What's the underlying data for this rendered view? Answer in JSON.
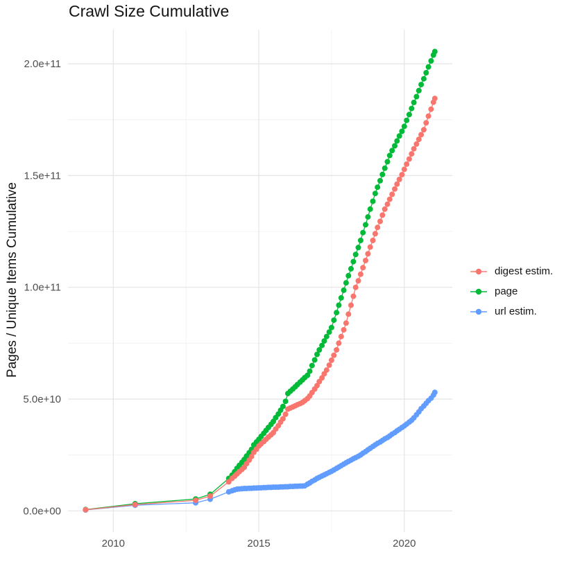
{
  "title": "Crawl Size Cumulative",
  "axes": {
    "y_title": "Pages / Unique Items Cumulative",
    "y_ticks": [
      "0.0e+00",
      "5.0e+10",
      "1.0e+11",
      "1.5e+11",
      "2.0e+11"
    ],
    "x_ticks": [
      "2010",
      "2015",
      "2020"
    ]
  },
  "legend": [
    {
      "label": "digest estim.",
      "color": "#F8766D"
    },
    {
      "label": "page",
      "color": "#00BA38"
    },
    {
      "label": "url estim.",
      "color": "#619CFF"
    }
  ],
  "chart_data": {
    "type": "scatter",
    "title": "Crawl Size Cumulative",
    "xlabel": "",
    "ylabel": "Pages / Unique Items Cumulative",
    "xlim": [
      2008.45,
      2021.66
    ],
    "ylim_e10": [
      -1.0,
      21.5
    ],
    "grid": true,
    "legend_position": "right",
    "value_unit": "1e10 pages / unique items (cumulative)",
    "x_major_ticks": [
      2010,
      2015,
      2020
    ],
    "x_minor_gridlines": [
      2012.5,
      2017.5
    ],
    "y_major_ticks_e10": [
      0,
      5,
      10,
      15,
      20
    ],
    "y_minor_gridlines_e10": [
      2.5,
      7.5,
      12.5,
      17.5
    ],
    "draw_order": [
      "page",
      "url estim.",
      "digest estim."
    ],
    "series": [
      {
        "name": "digest estim.",
        "color": "#F8766D",
        "points": [
          [
            2009.05,
            0.05
          ],
          [
            2010.75,
            0.28
          ],
          [
            2012.83,
            0.47
          ],
          [
            2013.33,
            0.66
          ],
          [
            2013.97,
            1.3
          ],
          [
            2014.08,
            1.45
          ],
          [
            2014.17,
            1.55
          ],
          [
            2014.25,
            1.65
          ],
          [
            2014.33,
            1.75
          ],
          [
            2014.42,
            1.85
          ],
          [
            2014.5,
            1.95
          ],
          [
            2014.58,
            2.11
          ],
          [
            2014.67,
            2.27
          ],
          [
            2014.75,
            2.43
          ],
          [
            2014.83,
            2.62
          ],
          [
            2014.92,
            2.76
          ],
          [
            2015,
            2.9
          ],
          [
            2015.08,
            3
          ],
          [
            2015.17,
            3.1
          ],
          [
            2015.25,
            3.2
          ],
          [
            2015.33,
            3.3
          ],
          [
            2015.42,
            3.4
          ],
          [
            2015.5,
            3.5
          ],
          [
            2015.58,
            3.66
          ],
          [
            2015.67,
            3.81
          ],
          [
            2015.75,
            3.97
          ],
          [
            2015.83,
            4.12
          ],
          [
            2015.92,
            4.32
          ],
          [
            2016,
            4.55
          ],
          [
            2016.08,
            4.6
          ],
          [
            2016.17,
            4.65
          ],
          [
            2016.25,
            4.7
          ],
          [
            2016.33,
            4.75
          ],
          [
            2016.42,
            4.8
          ],
          [
            2016.5,
            4.85
          ],
          [
            2016.58,
            4.93
          ],
          [
            2016.67,
            5.02
          ],
          [
            2016.75,
            5.14
          ],
          [
            2016.83,
            5.29
          ],
          [
            2016.92,
            5.45
          ],
          [
            2017,
            5.6
          ],
          [
            2017.08,
            5.78
          ],
          [
            2017.17,
            5.95
          ],
          [
            2017.25,
            6.13
          ],
          [
            2017.33,
            6.3
          ],
          [
            2017.42,
            6.52
          ],
          [
            2017.5,
            6.74
          ],
          [
            2017.58,
            6.96
          ],
          [
            2017.67,
            7.2
          ],
          [
            2017.75,
            7.5
          ],
          [
            2017.83,
            7.8
          ],
          [
            2017.92,
            8.1
          ],
          [
            2018,
            8.4
          ],
          [
            2018.08,
            8.8
          ],
          [
            2018.17,
            9.2
          ],
          [
            2018.25,
            9.6
          ],
          [
            2018.33,
            10
          ],
          [
            2018.42,
            10.29
          ],
          [
            2018.5,
            10.59
          ],
          [
            2018.58,
            10.88
          ],
          [
            2018.67,
            11.2
          ],
          [
            2018.75,
            11.5
          ],
          [
            2018.83,
            11.8
          ],
          [
            2018.92,
            12.1
          ],
          [
            2019,
            12.4
          ],
          [
            2019.08,
            12.68
          ],
          [
            2019.17,
            12.95
          ],
          [
            2019.25,
            13.23
          ],
          [
            2019.33,
            13.5
          ],
          [
            2019.42,
            13.72
          ],
          [
            2019.5,
            13.94
          ],
          [
            2019.58,
            14.16
          ],
          [
            2019.67,
            14.4
          ],
          [
            2019.75,
            14.62
          ],
          [
            2019.83,
            14.83
          ],
          [
            2019.92,
            15.04
          ],
          [
            2020,
            15.28
          ],
          [
            2020.08,
            15.51
          ],
          [
            2020.17,
            15.74
          ],
          [
            2020.25,
            15.97
          ],
          [
            2020.33,
            16.2
          ],
          [
            2020.42,
            16.41
          ],
          [
            2020.5,
            16.62
          ],
          [
            2020.58,
            16.83
          ],
          [
            2020.67,
            17.05
          ],
          [
            2020.75,
            17.36
          ],
          [
            2020.83,
            17.66
          ],
          [
            2020.92,
            17.97
          ],
          [
            2021,
            18.28
          ],
          [
            2021.05,
            18.45
          ]
        ]
      },
      {
        "name": "page",
        "color": "#00BA38",
        "points": [
          [
            2009.05,
            0.06
          ],
          [
            2010.75,
            0.32
          ],
          [
            2012.83,
            0.53
          ],
          [
            2013.33,
            0.74
          ],
          [
            2013.97,
            1.45
          ],
          [
            2014.08,
            1.6
          ],
          [
            2014.17,
            1.75
          ],
          [
            2014.25,
            1.9
          ],
          [
            2014.33,
            2.03
          ],
          [
            2014.42,
            2.17
          ],
          [
            2014.5,
            2.3
          ],
          [
            2014.58,
            2.45
          ],
          [
            2014.67,
            2.6
          ],
          [
            2014.75,
            2.75
          ],
          [
            2014.83,
            2.95
          ],
          [
            2014.92,
            3.08
          ],
          [
            2015,
            3.2
          ],
          [
            2015.08,
            3.33
          ],
          [
            2015.17,
            3.47
          ],
          [
            2015.25,
            3.6
          ],
          [
            2015.33,
            3.73
          ],
          [
            2015.42,
            3.87
          ],
          [
            2015.5,
            4
          ],
          [
            2015.58,
            4.17
          ],
          [
            2015.67,
            4.33
          ],
          [
            2015.75,
            4.5
          ],
          [
            2015.83,
            4.67
          ],
          [
            2015.92,
            4.9
          ],
          [
            2016,
            5.25
          ],
          [
            2016.08,
            5.35
          ],
          [
            2016.17,
            5.45
          ],
          [
            2016.25,
            5.55
          ],
          [
            2016.33,
            5.65
          ],
          [
            2016.42,
            5.76
          ],
          [
            2016.5,
            5.86
          ],
          [
            2016.58,
            5.96
          ],
          [
            2016.67,
            6.06
          ],
          [
            2016.75,
            6.25
          ],
          [
            2016.83,
            6.5
          ],
          [
            2016.92,
            6.75
          ],
          [
            2017,
            7
          ],
          [
            2017.08,
            7.2
          ],
          [
            2017.17,
            7.4
          ],
          [
            2017.25,
            7.6
          ],
          [
            2017.33,
            7.8
          ],
          [
            2017.42,
            8
          ],
          [
            2017.5,
            8.2
          ],
          [
            2017.58,
            8.53
          ],
          [
            2017.67,
            8.87
          ],
          [
            2017.75,
            9.2
          ],
          [
            2017.83,
            9.53
          ],
          [
            2017.92,
            9.87
          ],
          [
            2018,
            10.2
          ],
          [
            2018.08,
            10.52
          ],
          [
            2018.17,
            10.83
          ],
          [
            2018.25,
            11.15
          ],
          [
            2018.33,
            11.47
          ],
          [
            2018.42,
            11.78
          ],
          [
            2018.5,
            12.1
          ],
          [
            2018.58,
            12.45
          ],
          [
            2018.67,
            12.8
          ],
          [
            2018.75,
            13.15
          ],
          [
            2018.83,
            13.5
          ],
          [
            2018.92,
            13.85
          ],
          [
            2019,
            14.2
          ],
          [
            2019.08,
            14.48
          ],
          [
            2019.17,
            14.77
          ],
          [
            2019.25,
            15.05
          ],
          [
            2019.33,
            15.33
          ],
          [
            2019.42,
            15.62
          ],
          [
            2019.5,
            15.9
          ],
          [
            2019.58,
            16.12
          ],
          [
            2019.67,
            16.33
          ],
          [
            2019.75,
            16.55
          ],
          [
            2019.83,
            16.77
          ],
          [
            2019.92,
            16.98
          ],
          [
            2020,
            17.2
          ],
          [
            2020.08,
            17.47
          ],
          [
            2020.17,
            17.73
          ],
          [
            2020.25,
            18
          ],
          [
            2020.33,
            18.27
          ],
          [
            2020.42,
            18.53
          ],
          [
            2020.5,
            18.8
          ],
          [
            2020.58,
            19.07
          ],
          [
            2020.67,
            19.33
          ],
          [
            2020.75,
            19.6
          ],
          [
            2020.83,
            19.86
          ],
          [
            2020.92,
            20.13
          ],
          [
            2021,
            20.39
          ],
          [
            2021.05,
            20.55
          ]
        ]
      },
      {
        "name": "url estim.",
        "color": "#619CFF",
        "points": [
          [
            2009.05,
            0.04
          ],
          [
            2010.75,
            0.25
          ],
          [
            2012.83,
            0.36
          ],
          [
            2013.33,
            0.52
          ],
          [
            2013.97,
            0.85
          ],
          [
            2014.08,
            0.9
          ],
          [
            2014.17,
            0.94
          ],
          [
            2014.25,
            0.97
          ],
          [
            2014.33,
            0.98
          ],
          [
            2014.42,
            0.99
          ],
          [
            2014.5,
            1
          ],
          [
            2014.58,
            1
          ],
          [
            2014.67,
            1.01
          ],
          [
            2014.75,
            1.01
          ],
          [
            2014.83,
            1.02
          ],
          [
            2014.92,
            1.02
          ],
          [
            2015,
            1.03
          ],
          [
            2015.08,
            1.03
          ],
          [
            2015.17,
            1.04
          ],
          [
            2015.25,
            1.04
          ],
          [
            2015.33,
            1.05
          ],
          [
            2015.42,
            1.05
          ],
          [
            2015.5,
            1.06
          ],
          [
            2015.58,
            1.06
          ],
          [
            2015.67,
            1.06
          ],
          [
            2015.75,
            1.07
          ],
          [
            2015.83,
            1.07
          ],
          [
            2015.92,
            1.08
          ],
          [
            2016,
            1.08
          ],
          [
            2016.08,
            1.09
          ],
          [
            2016.17,
            1.09
          ],
          [
            2016.25,
            1.1
          ],
          [
            2016.33,
            1.1
          ],
          [
            2016.42,
            1.11
          ],
          [
            2016.5,
            1.11
          ],
          [
            2016.58,
            1.12
          ],
          [
            2016.67,
            1.19
          ],
          [
            2016.75,
            1.25
          ],
          [
            2016.83,
            1.32
          ],
          [
            2016.92,
            1.38
          ],
          [
            2017,
            1.45
          ],
          [
            2017.08,
            1.5
          ],
          [
            2017.17,
            1.56
          ],
          [
            2017.25,
            1.61
          ],
          [
            2017.33,
            1.66
          ],
          [
            2017.42,
            1.72
          ],
          [
            2017.5,
            1.77
          ],
          [
            2017.58,
            1.83
          ],
          [
            2017.67,
            1.9
          ],
          [
            2017.75,
            1.96
          ],
          [
            2017.83,
            2.02
          ],
          [
            2017.92,
            2.09
          ],
          [
            2018,
            2.15
          ],
          [
            2018.08,
            2.21
          ],
          [
            2018.17,
            2.27
          ],
          [
            2018.25,
            2.33
          ],
          [
            2018.33,
            2.38
          ],
          [
            2018.42,
            2.44
          ],
          [
            2018.5,
            2.5
          ],
          [
            2018.58,
            2.58
          ],
          [
            2018.67,
            2.65
          ],
          [
            2018.75,
            2.73
          ],
          [
            2018.83,
            2.8
          ],
          [
            2018.92,
            2.88
          ],
          [
            2019,
            2.95
          ],
          [
            2019.08,
            3.02
          ],
          [
            2019.17,
            3.08
          ],
          [
            2019.25,
            3.15
          ],
          [
            2019.33,
            3.22
          ],
          [
            2019.42,
            3.28
          ],
          [
            2019.5,
            3.35
          ],
          [
            2019.58,
            3.43
          ],
          [
            2019.67,
            3.5
          ],
          [
            2019.75,
            3.58
          ],
          [
            2019.83,
            3.65
          ],
          [
            2019.92,
            3.73
          ],
          [
            2020,
            3.8
          ],
          [
            2020.08,
            3.88
          ],
          [
            2020.17,
            3.97
          ],
          [
            2020.25,
            4.05
          ],
          [
            2020.33,
            4.16
          ],
          [
            2020.42,
            4.3
          ],
          [
            2020.5,
            4.43
          ],
          [
            2020.58,
            4.57
          ],
          [
            2020.67,
            4.69
          ],
          [
            2020.75,
            4.81
          ],
          [
            2020.83,
            4.93
          ],
          [
            2020.92,
            5.04
          ],
          [
            2021,
            5.18
          ],
          [
            2021.05,
            5.3
          ]
        ]
      }
    ]
  }
}
